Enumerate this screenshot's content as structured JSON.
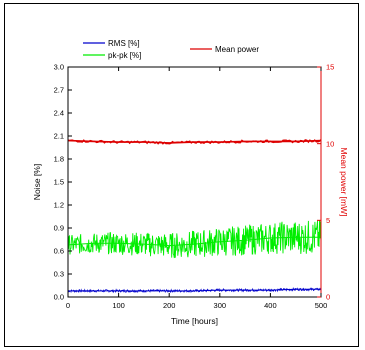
{
  "chart_data": {
    "type": "line",
    "title": "",
    "xlabel": "Time [hours]",
    "ylabel_left": "Noise [%]",
    "ylabel_right": "Mean power [mW]",
    "xlim": [
      0,
      500
    ],
    "ylim_left": [
      0,
      3.0
    ],
    "ylim_right": [
      0,
      15
    ],
    "x_ticks": [
      0,
      100,
      200,
      300,
      400,
      500
    ],
    "x_tick_labels": [
      "0",
      "100",
      "200",
      "300",
      "400",
      "500"
    ],
    "y_left_ticks": [
      0,
      0.3,
      0.6,
      0.9,
      1.2,
      1.5,
      1.8,
      2.1,
      2.4,
      2.7,
      3.0
    ],
    "y_left_tick_labels": [
      "0.0",
      "0.3",
      "0.6",
      "0.9",
      "1.2",
      "1.5",
      "1.8",
      "2.1",
      "2.4",
      "2.7",
      "3.0"
    ],
    "y_right_ticks": [
      0,
      5,
      10,
      15
    ],
    "y_right_tick_labels": [
      "0",
      "5",
      "10",
      "15"
    ],
    "grid": false,
    "legend_placement": "top",
    "right_axis_color": "#e00000",
    "series": [
      {
        "name": "RMS [%]",
        "axis": "left",
        "color": "#0000cc",
        "x": [
          0,
          50,
          100,
          150,
          200,
          250,
          300,
          350,
          400,
          450,
          500
        ],
        "values": [
          0.08,
          0.08,
          0.08,
          0.08,
          0.08,
          0.08,
          0.09,
          0.09,
          0.09,
          0.1,
          0.1
        ],
        "noise_band": [
          0.06,
          0.13
        ]
      },
      {
        "name": "pk-pk [%]",
        "axis": "left",
        "color": "#00ee00",
        "x": [
          0,
          50,
          100,
          150,
          200,
          250,
          300,
          350,
          400,
          450,
          500
        ],
        "values": [
          0.68,
          0.7,
          0.7,
          0.69,
          0.67,
          0.69,
          0.72,
          0.74,
          0.77,
          0.78,
          0.78
        ],
        "noise_band": [
          0.52,
          0.98
        ]
      },
      {
        "name": "Mean power",
        "axis": "right",
        "color": "#dd0000",
        "x": [
          0,
          50,
          100,
          150,
          200,
          250,
          300,
          350,
          400,
          450,
          500
        ],
        "values": [
          10.2,
          10.15,
          10.1,
          10.1,
          10.05,
          10.1,
          10.1,
          10.15,
          10.15,
          10.15,
          10.2
        ]
      }
    ]
  }
}
